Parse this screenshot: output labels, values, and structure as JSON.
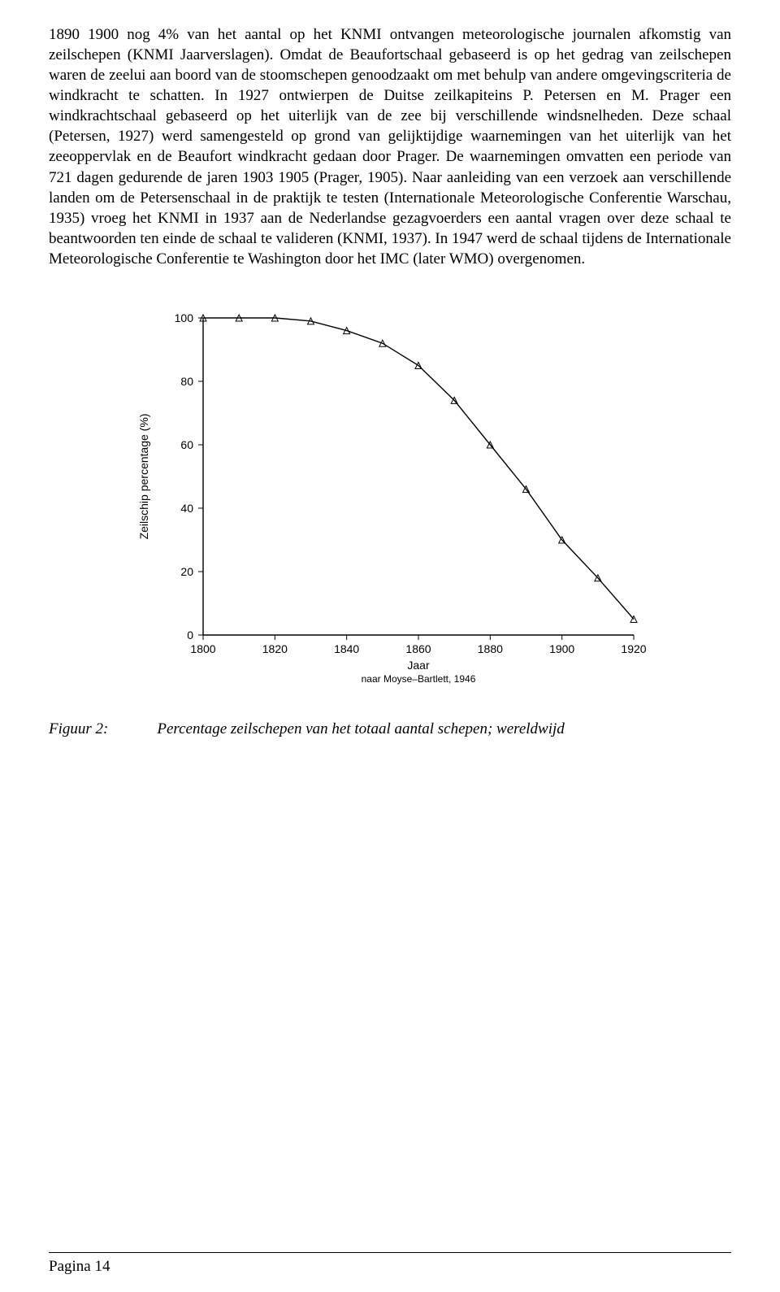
{
  "paragraph": "1890 1900 nog 4% van het aantal op het KNMI ontvangen meteorologische journalen afkomstig van zeilschepen (KNMI Jaarverslagen). Omdat de Beaufortschaal gebaseerd is op het gedrag van zeilschepen waren de zeelui aan boord van de stoomschepen genoodzaakt om met behulp van andere omgevingscriteria de windkracht te schatten. In 1927 ontwierpen de Duitse zeilkapiteins P. Petersen en M. Prager een windkrachtschaal gebaseerd op het uiterlijk van de zee bij verschillende windsnelheden. Deze schaal (Petersen, 1927) werd samengesteld op grond van gelijktijdige waarnemingen van het uiterlijk van het zeeoppervlak en de Beaufort windkracht gedaan door Prager. De waarnemingen omvatten een periode van 721 dagen gedurende de jaren 1903 1905 (Prager, 1905). Naar aanleiding van een verzoek aan verschillende landen om de Petersenschaal in de praktijk te testen (Internationale Meteorologische Conferentie Warschau, 1935) vroeg het KNMI in 1937 aan de Nederlandse gezagvoerders een aantal vragen over deze schaal te beantwoorden ten einde de schaal te valideren (KNMI, 1937). In 1947 werd de schaal tijdens de Internationale Meteorologische Conferentie te Washington door het IMC (later WMO) overgenomen.",
  "chart": {
    "type": "line",
    "x": [
      1800,
      1810,
      1820,
      1830,
      1840,
      1850,
      1860,
      1870,
      1880,
      1890,
      1900,
      1910,
      1920
    ],
    "y": [
      100,
      100,
      100,
      99,
      96,
      92,
      85,
      74,
      60,
      46,
      30,
      18,
      5
    ],
    "xlim": [
      1800,
      1920
    ],
    "ylim": [
      0,
      100
    ],
    "xtick_step": 20,
    "ytick_step": 20,
    "x_ticks": [
      1800,
      1820,
      1840,
      1860,
      1880,
      1900,
      1920
    ],
    "y_ticks": [
      0,
      20,
      40,
      60,
      80,
      100
    ],
    "ylabel": "Zeilschip percentage (%)",
    "xlabel": "Jaar",
    "source": "naar Moyse–Bartlett, 1946",
    "line_color": "#000000",
    "marker": "triangle",
    "background_color": "#ffffff",
    "tick_fontsize": 14,
    "label_fontsize": 14
  },
  "caption": {
    "label": "Figuur 2:",
    "text": "Percentage zeilschepen van het totaal aantal schepen; wereldwijd"
  },
  "footer": {
    "page": "Pagina 14"
  }
}
